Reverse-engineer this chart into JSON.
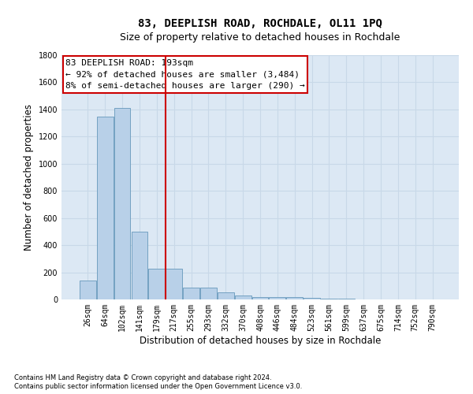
{
  "title": "83, DEEPLISH ROAD, ROCHDALE, OL11 1PQ",
  "subtitle": "Size of property relative to detached houses in Rochdale",
  "xlabel": "Distribution of detached houses by size in Rochdale",
  "ylabel": "Number of detached properties",
  "footnote1": "Contains HM Land Registry data © Crown copyright and database right 2024.",
  "footnote2": "Contains public sector information licensed under the Open Government Licence v3.0.",
  "categories": [
    "26sqm",
    "64sqm",
    "102sqm",
    "141sqm",
    "179sqm",
    "217sqm",
    "255sqm",
    "293sqm",
    "332sqm",
    "370sqm",
    "408sqm",
    "446sqm",
    "484sqm",
    "523sqm",
    "561sqm",
    "599sqm",
    "637sqm",
    "675sqm",
    "714sqm",
    "752sqm",
    "790sqm"
  ],
  "values": [
    140,
    1350,
    1410,
    500,
    225,
    225,
    85,
    85,
    50,
    30,
    18,
    15,
    15,
    10,
    8,
    5,
    0,
    0,
    0,
    0,
    0
  ],
  "bar_color": "#b8d0e8",
  "bar_edge_color": "#6699bb",
  "vline_color": "#cc0000",
  "vline_x_idx": 4.5,
  "annotation_text_line1": "83 DEEPLISH ROAD: 193sqm",
  "annotation_text_line2": "← 92% of detached houses are smaller (3,484)",
  "annotation_text_line3": "8% of semi-detached houses are larger (290) →",
  "annotation_box_color": "#ffffff",
  "annotation_box_edge_color": "#cc0000",
  "ylim": [
    0,
    1800
  ],
  "yticks": [
    0,
    200,
    400,
    600,
    800,
    1000,
    1200,
    1400,
    1600,
    1800
  ],
  "grid_color": "#c8d8e8",
  "bg_color": "#dce8f4",
  "title_fontsize": 10,
  "subtitle_fontsize": 9,
  "axis_label_fontsize": 8.5,
  "tick_fontsize": 7,
  "annotation_fontsize": 8,
  "footnote_fontsize": 6
}
